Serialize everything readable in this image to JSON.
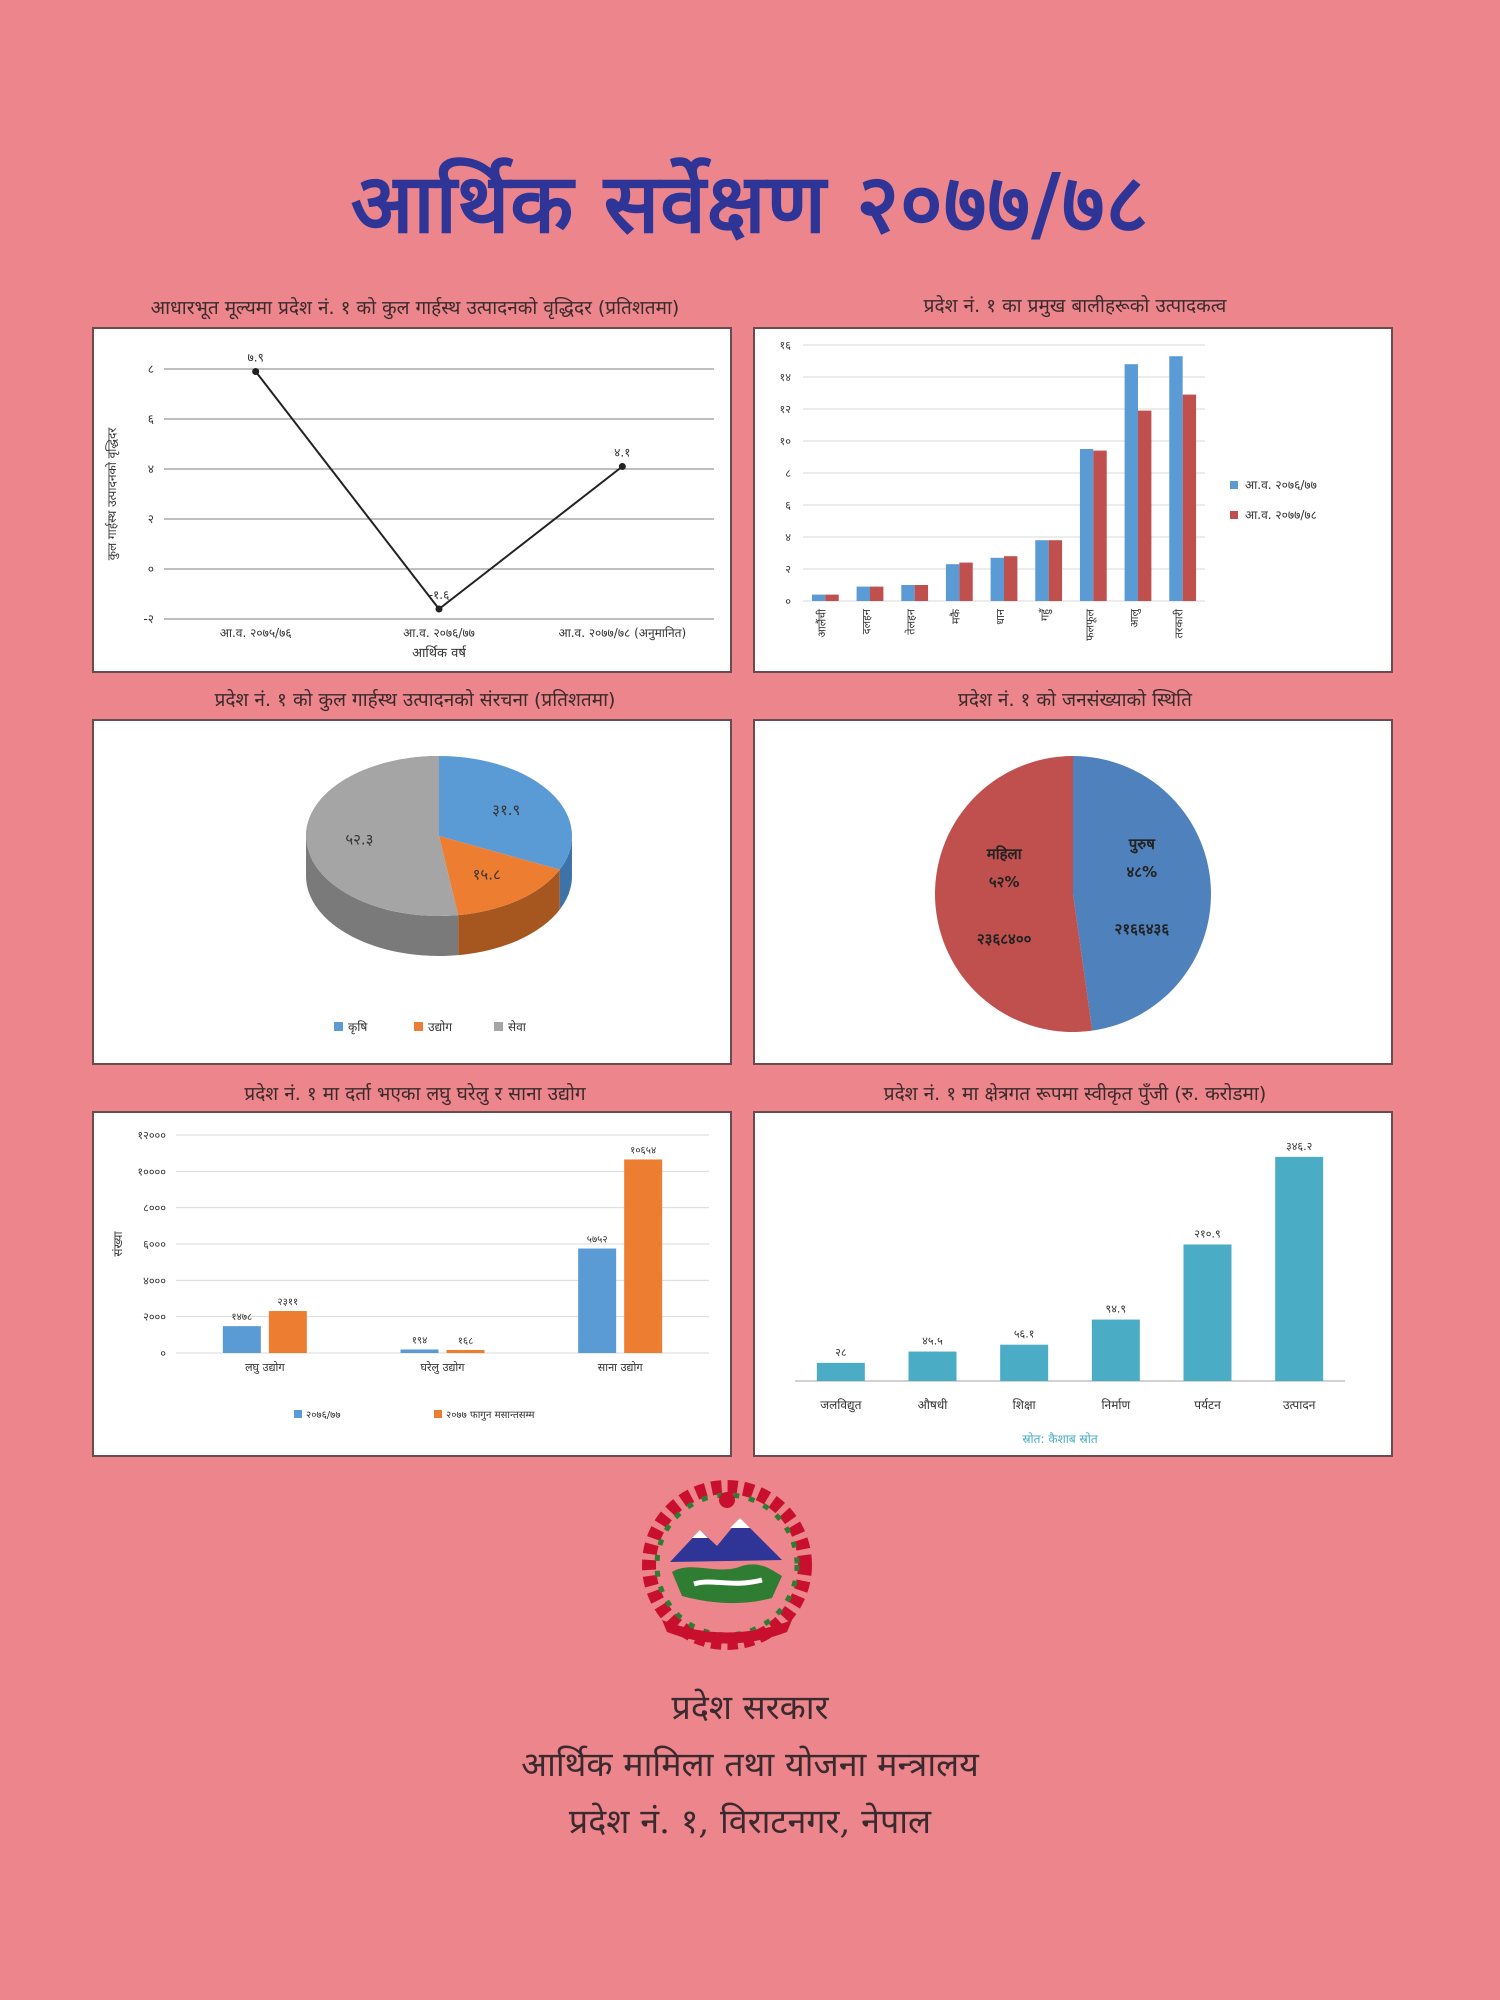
{
  "page": {
    "title": "आर्थिक सर्वेक्षण २०७७/७८",
    "footer": {
      "line1": "प्रदेश सरकार",
      "line2": "आर्थिक मामिला तथा योजना मन्त्रालय",
      "line3": "प्रदेश नं. १, विराटनगर, नेपाल"
    }
  },
  "colors": {
    "background": "#ec858c",
    "title": "#2e3596",
    "blue": "#5b9bd5",
    "orange": "#ed7d31",
    "gray": "#a5a5a5",
    "red": "#c0504d",
    "teal": "#4bacc6"
  },
  "chart_data": [
    {
      "type": "line",
      "title": "आधारभूत मूल्यमा प्रदेश नं. १ को कुल गार्हस्थ उत्पादनको वृद्धिदर (प्रतिशतमा)",
      "xlabel": "आर्थिक वर्ष",
      "ylabel": "कुल गार्हस्थ उत्पादनको वृद्धिदर",
      "categories": [
        "आ.व. २०७५/७६",
        "आ.व. २०७६/७७",
        "आ.व. २०७७/७८ (अनुमानित)"
      ],
      "values": [
        7.9,
        -1.6,
        4.1
      ],
      "value_labels": [
        "७.९",
        "-१.६",
        "४.१"
      ],
      "ylim": [
        -2,
        8
      ],
      "yticks": [
        -2,
        0,
        2,
        4,
        6,
        8
      ],
      "ytick_labels": [
        "-२",
        "०",
        "२",
        "४",
        "६",
        "८"
      ],
      "grid": true
    },
    {
      "type": "bar",
      "title": "प्रदेश नं. १ का प्रमुख बालीहरूको उत्पादकत्व",
      "categories": [
        "आलैंची",
        "दलहन",
        "तेलहन",
        "मकै",
        "धान",
        "गहुँ",
        "फलफूल",
        "आलु",
        "तरकारी"
      ],
      "series": [
        {
          "name": "आ.व. २०७६/७७",
          "values": [
            0.4,
            0.9,
            1.0,
            2.3,
            2.7,
            3.8,
            9.5,
            14.8,
            15.3
          ]
        },
        {
          "name": "आ.व. २०७७/७८",
          "values": [
            0.4,
            0.9,
            1.0,
            2.4,
            2.8,
            3.8,
            9.4,
            11.9,
            12.9
          ]
        }
      ],
      "ylim": [
        0,
        16
      ],
      "yticks": [
        0,
        2,
        4,
        6,
        8,
        10,
        12,
        14,
        16
      ],
      "ytick_labels": [
        "०",
        "२",
        "४",
        "६",
        "८",
        "१०",
        "१२",
        "१४",
        "१६"
      ],
      "legend": "right",
      "grid": true
    },
    {
      "type": "pie",
      "title": "प्रदेश नं. १ को कुल गार्हस्थ उत्पादनको संरचना (प्रतिशतमा)",
      "labels": [
        "कृषि",
        "उद्योग",
        "सेवा"
      ],
      "values": [
        31.9,
        15.8,
        52.3
      ],
      "value_labels": [
        "३१.९",
        "१५.८",
        "५२.३"
      ],
      "legend": "bottom"
    },
    {
      "type": "pie",
      "title": "प्रदेश नं. १ को जनसंख्याको स्थिति",
      "labels": [
        "पुरुष",
        "महिला"
      ],
      "percent_labels": [
        "४८%",
        "५२%"
      ],
      "values": [
        2166436,
        2368400
      ],
      "value_labels": [
        "२१६६४३६",
        "२३६८४००"
      ]
    },
    {
      "type": "bar",
      "title": "प्रदेश नं. १ मा दर्ता भएका लघु घरेलु र साना उद्योग",
      "ylabel": "संख्या",
      "categories": [
        "लघु उद्योग",
        "घरेलु उद्योग",
        "साना उद्योग"
      ],
      "series": [
        {
          "name": "२०७६/७७",
          "values": [
            1478,
            194,
            5752
          ]
        },
        {
          "name": "२०७७ फागुन मसान्तसम्म",
          "values": [
            2311,
            168,
            10654
          ]
        }
      ],
      "value_labels": [
        [
          "१४७८",
          "१९४",
          "५७५२"
        ],
        [
          "२३११",
          "१६८",
          "१०६५४"
        ]
      ],
      "ylim": [
        0,
        12000
      ],
      "yticks": [
        0,
        2000,
        4000,
        6000,
        8000,
        10000,
        12000
      ],
      "ytick_labels": [
        "०",
        "२०००",
        "४०००",
        "६०००",
        "८०००",
        "१००००",
        "१२०००"
      ],
      "legend": "bottom",
      "grid": true
    },
    {
      "type": "bar",
      "title": "प्रदेश नं. १ मा क्षेत्रगत रूपमा स्वीकृत पुँजी (रु. करोडमा)",
      "categories": [
        "जलविद्युत",
        "औषधी",
        "शिक्षा",
        "निर्माण",
        "पर्यटन",
        "उत्पादन"
      ],
      "values": [
        28,
        45.5,
        56.1,
        94.9,
        210.9,
        346.2
      ],
      "value_labels": [
        "२८",
        "४५.५",
        "५६.१",
        "९४.९",
        "२१०.९",
        "३४६.२"
      ],
      "ylim": [
        0,
        380
      ],
      "source": "स्रोत: कैशाब स्रोत"
    }
  ]
}
